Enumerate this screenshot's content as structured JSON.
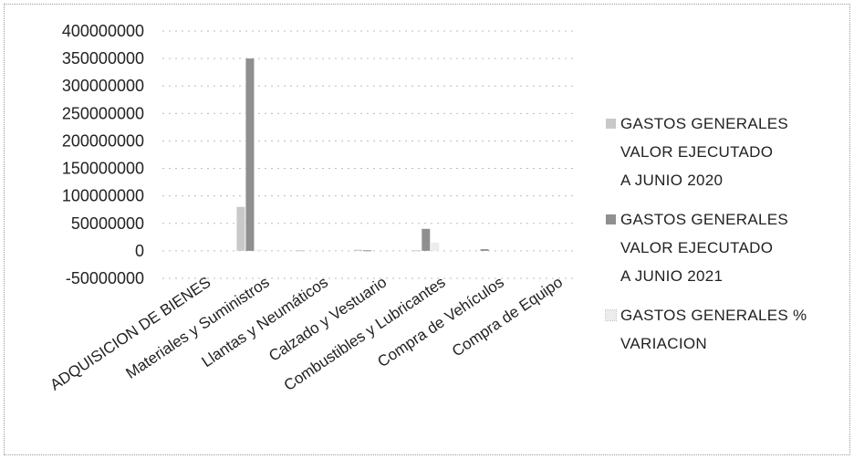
{
  "chart_data": {
    "type": "bar",
    "title": "",
    "xlabel": "",
    "ylabel": "",
    "ylim": [
      -50000000,
      400000000
    ],
    "yticks": [
      400000000,
      350000000,
      300000000,
      250000000,
      200000000,
      150000000,
      100000000,
      50000000,
      0,
      -50000000
    ],
    "ytick_labels": [
      "400000000",
      "350000000",
      "300000000",
      "250000000",
      "200000000",
      "150000000",
      "100000000",
      "50000000",
      "0",
      "-50000000"
    ],
    "grid": true,
    "legend_position": "right",
    "categories": [
      "ADQUISICION DE BIENES",
      "Materiales y Suministros",
      "Llantas y Neumáticos",
      "Calzado y Vestuario",
      "Combustibles y Lubricantes",
      "Compra de Vehículos",
      "Compra de Equipo"
    ],
    "series": [
      {
        "name": "GASTOS GENERALES VALOR EJECUTADO A JUNIO  2020",
        "legend_lines": [
          "GASTOS GENERALES",
          "VALOR EJECUTADO",
          "A JUNIO  2020"
        ],
        "color": "#c9c9c9",
        "values": [
          0,
          80000000,
          1000000,
          2000000,
          1000000,
          0,
          0
        ]
      },
      {
        "name": "GASTOS GENERALES VALOR EJECUTADO A JUNIO  2021",
        "legend_lines": [
          "GASTOS GENERALES",
          "VALOR EJECUTADO",
          "A JUNIO  2021"
        ],
        "color": "#8f8f8f",
        "values": [
          0,
          350000000,
          0,
          1000000,
          40000000,
          3000000,
          0
        ]
      },
      {
        "name": "GASTOS GENERALES % VARIACION",
        "legend_lines": [
          "GASTOS GENERALES %",
          "VARIACION"
        ],
        "color": "#ececec",
        "values": [
          0,
          2000000,
          0,
          0,
          15000000,
          0,
          0
        ]
      }
    ]
  }
}
